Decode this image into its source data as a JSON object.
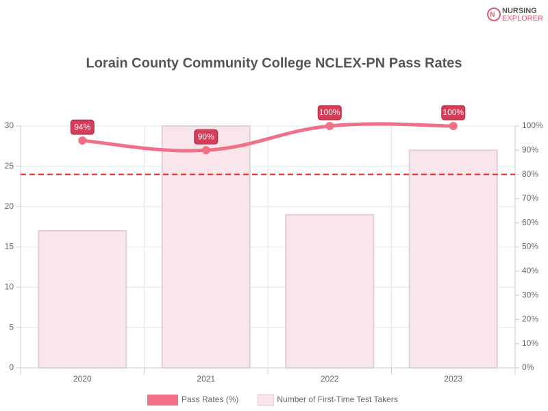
{
  "logo": {
    "line1": "NURSING",
    "line2": "EXPLORER"
  },
  "chart_data": {
    "type": "bar",
    "title": "Lorain County Community College NCLEX-PN Pass Rates",
    "categories": [
      "2020",
      "2021",
      "2022",
      "2023"
    ],
    "series": [
      {
        "name": "Pass Rates (%)",
        "type": "line",
        "axis": "y2",
        "color": "#f07088",
        "values": [
          94,
          90,
          100,
          100
        ],
        "value_labels": [
          "94%",
          "90%",
          "100%",
          "100%"
        ]
      },
      {
        "name": "Number of First-Time Test Takers",
        "type": "bar",
        "color": "#f9e6ea",
        "values": [
          17,
          30,
          19,
          27
        ]
      }
    ],
    "ylim": [
      0,
      30
    ],
    "yticks": [
      0,
      5,
      10,
      15,
      20,
      25,
      30
    ],
    "y2lim": [
      0,
      100
    ],
    "y2ticks": [
      {
        "value": 0,
        "label": "0%"
      },
      {
        "value": 10,
        "label": "10%"
      },
      {
        "value": 20,
        "label": "20%"
      },
      {
        "value": 30,
        "label": "30%"
      },
      {
        "value": 40,
        "label": "40%"
      },
      {
        "value": 50,
        "label": "50%"
      },
      {
        "value": 60,
        "label": "60%"
      },
      {
        "value": 70,
        "label": "70%"
      },
      {
        "value": 80,
        "label": "80%"
      },
      {
        "value": 90,
        "label": "90%"
      },
      {
        "value": 100,
        "label": "100%"
      }
    ],
    "reference_line": {
      "value": 80,
      "axis": "y2",
      "color": "#e02424"
    },
    "grid": true,
    "legend": "bottom"
  }
}
